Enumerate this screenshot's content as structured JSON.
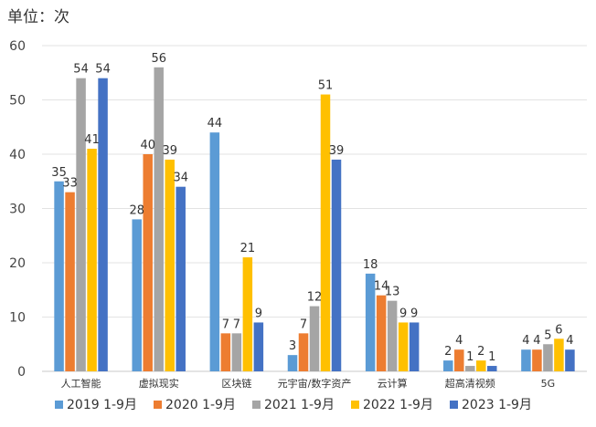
{
  "chart_data": {
    "type": "bar",
    "unit_label": "单位：次",
    "categories": [
      "人工智能",
      "虚拟现实",
      "区块链",
      "元宇宙/数字资产",
      "云计算",
      "超高清视频",
      "5G"
    ],
    "series": [
      {
        "name": "2019  1-9月",
        "color": "#5b9bd5",
        "values": [
          35,
          28,
          44,
          3,
          18,
          2,
          4
        ]
      },
      {
        "name": "2020  1-9月",
        "color": "#ed7d31",
        "values": [
          33,
          40,
          7,
          7,
          14,
          4,
          4
        ]
      },
      {
        "name": "2021  1-9月",
        "color": "#a5a5a5",
        "values": [
          54,
          56,
          7,
          12,
          13,
          1,
          5
        ]
      },
      {
        "name": "2022  1-9月",
        "color": "#ffc000",
        "values": [
          41,
          39,
          21,
          51,
          9,
          2,
          6
        ]
      },
      {
        "name": "2023  1-9月",
        "color": "#4472c4",
        "values": [
          54,
          34,
          9,
          39,
          9,
          1,
          4
        ]
      }
    ],
    "ylim": [
      0,
      60
    ],
    "yticks": [
      0,
      10,
      20,
      30,
      40,
      50,
      60
    ],
    "grid": true,
    "legend": "bottom"
  }
}
